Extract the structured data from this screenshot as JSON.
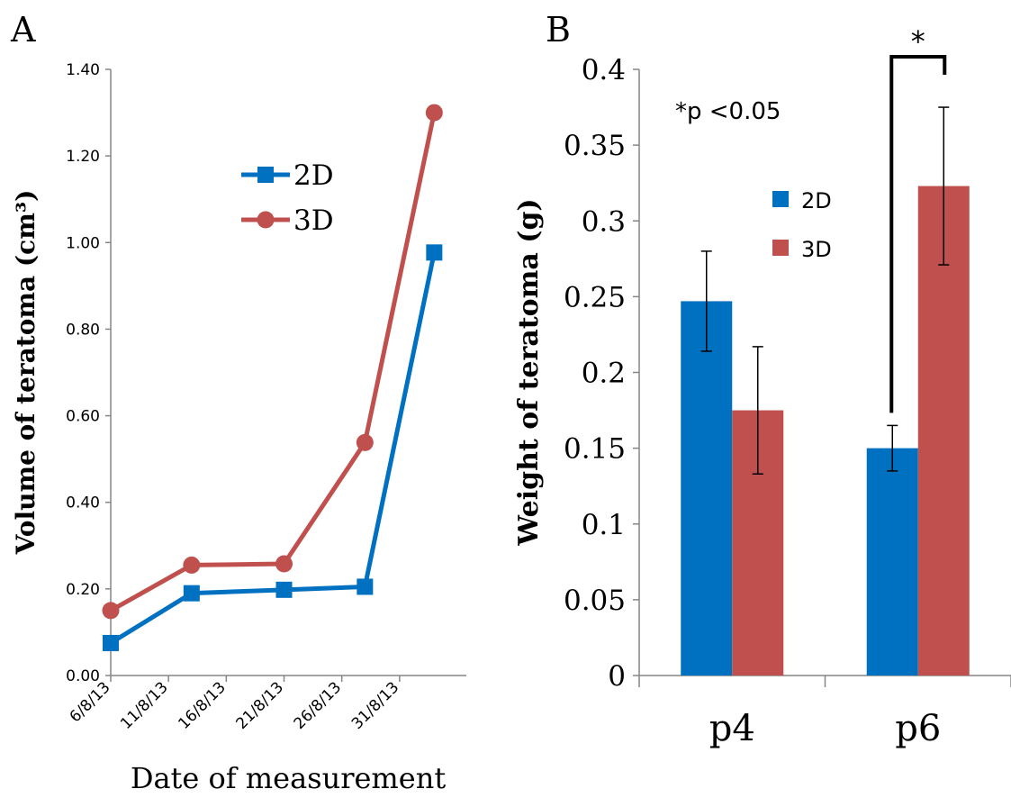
{
  "panels": {
    "a": "A",
    "b": "B"
  },
  "chart_data": [
    {
      "type": "line",
      "panel": "A",
      "xlabel": "Date of measurement",
      "ylabel": "Volume of teratoma (cm³)",
      "x_ticks": [
        "6/8/13",
        "11/8/13",
        "16/8/13",
        "21/8/13",
        "26/8/13",
        "31/8/13"
      ],
      "x_range": [
        "2013-08-06",
        "2013-09-05"
      ],
      "ylim": [
        0,
        1.4
      ],
      "y_ticks": [
        "0.00",
        "0.20",
        "0.40",
        "0.60",
        "0.80",
        "1.00",
        "1.20",
        "1.40"
      ],
      "grid": false,
      "legend_position": "top-center",
      "series": [
        {
          "name": "2D",
          "color": "#0070c0",
          "marker": "square",
          "x": [
            "2013-08-06",
            "2013-08-13",
            "2013-08-21",
            "2013-08-28",
            "2013-09-03"
          ],
          "values": [
            0.075,
            0.19,
            0.198,
            0.205,
            0.977
          ]
        },
        {
          "name": "3D",
          "color": "#c0504d",
          "marker": "circle",
          "x": [
            "2013-08-06",
            "2013-08-13",
            "2013-08-21",
            "2013-08-28",
            "2013-09-03"
          ],
          "values": [
            0.15,
            0.255,
            0.258,
            0.538,
            1.3
          ]
        }
      ]
    },
    {
      "type": "bar",
      "panel": "B",
      "xlabel": "",
      "ylabel": "Weight of teratoma (g)",
      "categories": [
        "p4",
        "p6"
      ],
      "ylim": [
        0,
        0.4
      ],
      "y_ticks": [
        "0",
        "0.05",
        "0.1",
        "0.15",
        "0.2",
        "0.25",
        "0.3",
        "0.35",
        "0.4"
      ],
      "grid": false,
      "legend_position": "top-center",
      "annotation": "*p <0.05",
      "significance": {
        "category": "p6",
        "label": "*"
      },
      "series": [
        {
          "name": "2D",
          "color": "#0070c0",
          "values": [
            0.247,
            0.15
          ],
          "errors": [
            0.033,
            0.015
          ]
        },
        {
          "name": "3D",
          "color": "#c0504d",
          "values": [
            0.175,
            0.323
          ],
          "errors": [
            0.042,
            0.052
          ]
        }
      ]
    }
  ]
}
